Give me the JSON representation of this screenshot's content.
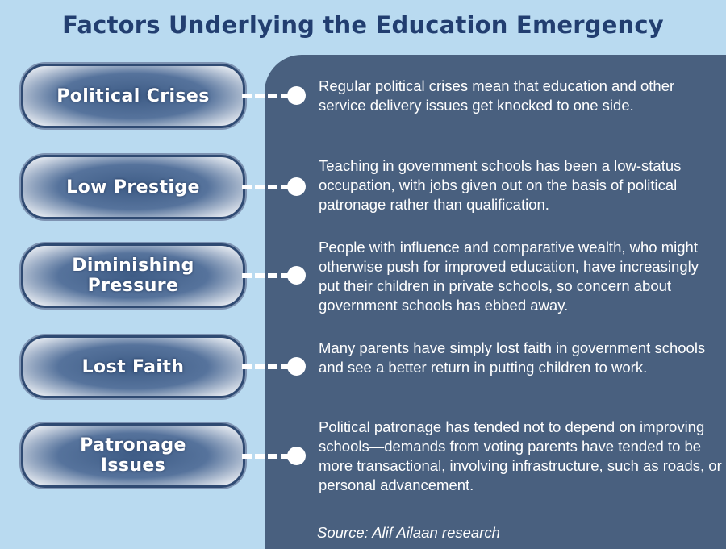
{
  "title": "Factors Underlying the Education Emergency",
  "factors": [
    {
      "label": "Political Crises",
      "description": "Regular political crises mean that education and other service delivery issues get knocked to one side."
    },
    {
      "label": "Low Prestige",
      "description": "Teaching in government schools has been a low-status occupation, with jobs given out on the basis of political patronage rather than qualification."
    },
    {
      "label": "Diminishing\nPressure",
      "description": "People with influence and comparative wealth, who might otherwise push for improved education, have increasingly put their children in private schools, so concern about government schools has ebbed away."
    },
    {
      "label": "Lost Faith",
      "description": "Many parents have simply lost faith in government schools and see a better return in putting children to work."
    },
    {
      "label": "Patronage\nIssues",
      "description": "Political patronage has tended not to depend on improving schools—demands from voting parents have tended to be more transactional, involving infrastructure, such as roads, or personal advancement."
    }
  ],
  "source": "Source: Alif Ailaan research",
  "colors": {
    "background": "#b9daf0",
    "panel": "#49607f",
    "title": "#223e70",
    "box_border": "#2f4a72"
  }
}
